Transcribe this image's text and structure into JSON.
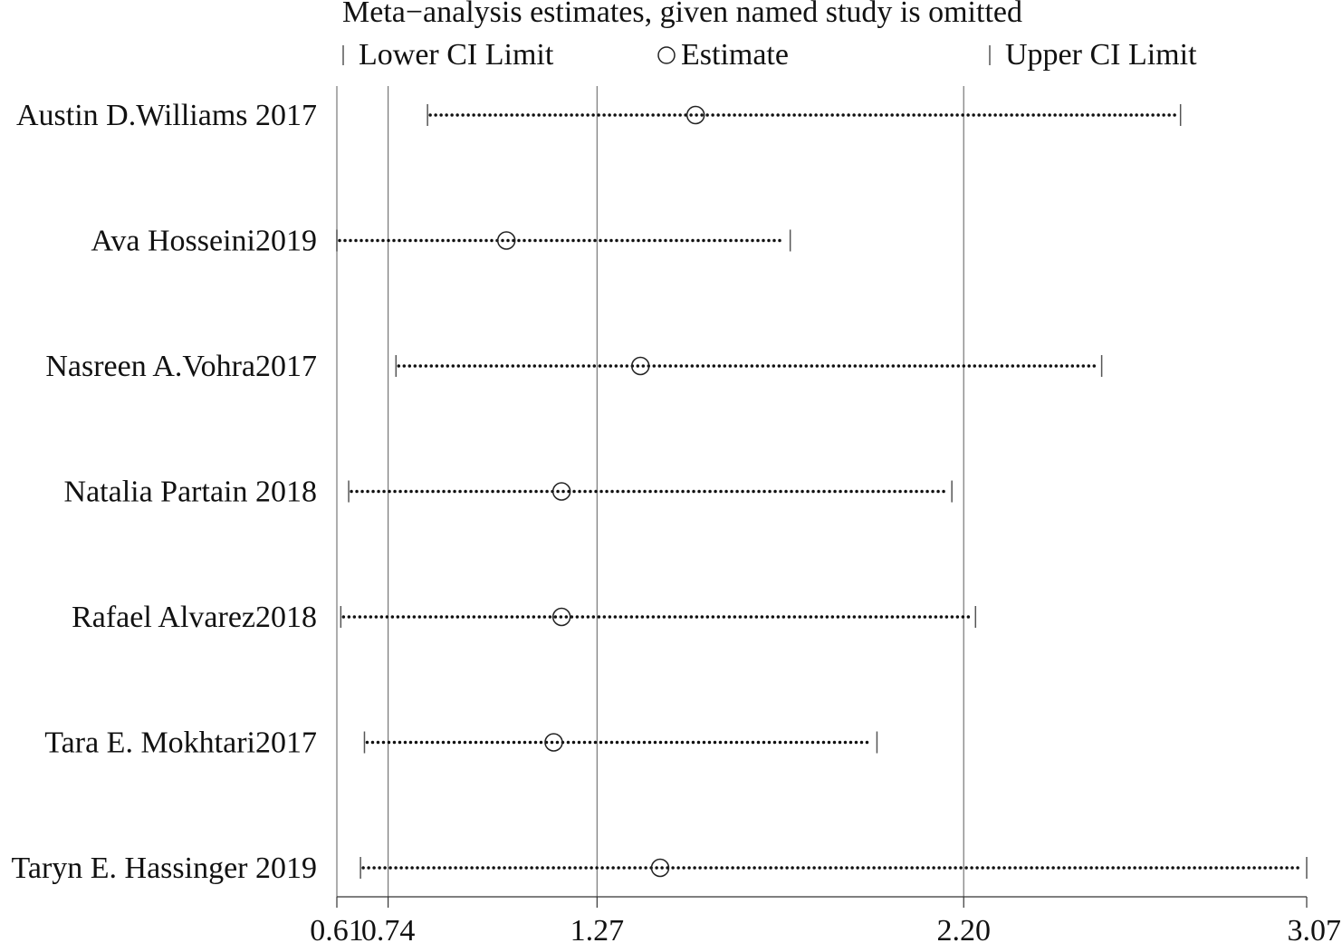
{
  "chart_data": {
    "type": "forest",
    "title": "Meta−analysis estimates, given named study is omitted",
    "legend": {
      "lower": "Lower CI Limit",
      "estimate": "Estimate",
      "upper": "Upper CI Limit",
      "placement": "top"
    },
    "xlim": [
      0.61,
      3.07
    ],
    "ticks": [
      {
        "value": 0.61,
        "label": "0.61"
      },
      {
        "value": 0.74,
        "label": "0.74"
      },
      {
        "value": 1.27,
        "label": "1.27"
      },
      {
        "value": 2.2,
        "label": "2.20"
      },
      {
        "value": 3.07,
        "label": "3.07"
      }
    ],
    "reference_lines": [
      0.61,
      0.74,
      1.27,
      2.2
    ],
    "studies": [
      {
        "name": "Austin D.Williams 2017",
        "lower": 0.84,
        "estimate": 1.52,
        "upper": 2.75
      },
      {
        "name": "Ava Hosseini2019",
        "lower": 0.61,
        "estimate": 1.04,
        "upper": 1.76
      },
      {
        "name": "Nasreen A.Vohra2017",
        "lower": 0.76,
        "estimate": 1.38,
        "upper": 2.55
      },
      {
        "name": "Natalia Partain 2018",
        "lower": 0.64,
        "estimate": 1.18,
        "upper": 2.17
      },
      {
        "name": "Rafael Alvarez2018",
        "lower": 0.62,
        "estimate": 1.18,
        "upper": 2.23
      },
      {
        "name": "Tara E. Mokhtari2017",
        "lower": 0.68,
        "estimate": 1.16,
        "upper": 1.98
      },
      {
        "name": "Taryn E. Hassinger 2019",
        "lower": 0.67,
        "estimate": 1.43,
        "upper": 3.07
      }
    ]
  }
}
